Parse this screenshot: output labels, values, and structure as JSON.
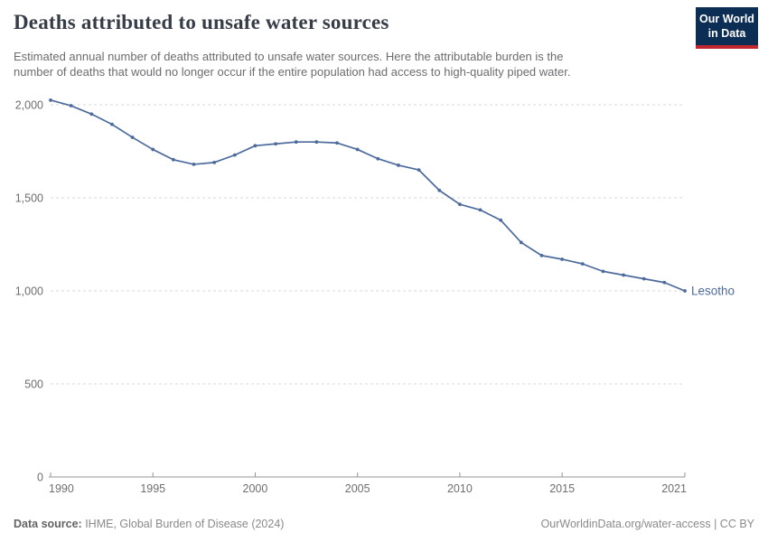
{
  "header": {
    "title": "Deaths attributed to unsafe water sources",
    "subtitle_line1": "Estimated annual number of deaths attributed to unsafe water sources. Here the attributable burden is the",
    "subtitle_line2": "number of deaths that would no longer occur if the entire population had access to high-quality piped water.",
    "logo": {
      "line1": "Our World",
      "line2": "in Data"
    }
  },
  "chart_data": {
    "type": "line",
    "title": "Deaths attributed to unsafe water sources",
    "entity_label": "Lesotho",
    "x": [
      1990,
      1991,
      1992,
      1993,
      1994,
      1995,
      1996,
      1997,
      1998,
      1999,
      2000,
      2001,
      2002,
      2003,
      2004,
      2005,
      2006,
      2007,
      2008,
      2009,
      2010,
      2011,
      2012,
      2013,
      2014,
      2015,
      2016,
      2017,
      2018,
      2019,
      2020,
      2021
    ],
    "series": [
      {
        "name": "Lesotho",
        "values": [
          2025,
          1995,
          1950,
          1895,
          1825,
          1760,
          1705,
          1680,
          1690,
          1730,
          1780,
          1790,
          1800,
          1800,
          1795,
          1760,
          1710,
          1675,
          1650,
          1540,
          1465,
          1435,
          1380,
          1260,
          1190,
          1170,
          1145,
          1105,
          1085,
          1065,
          1045,
          1000
        ]
      }
    ],
    "xlabel": "",
    "ylabel": "",
    "x_ticks": [
      "1990",
      "1995",
      "2000",
      "2005",
      "2010",
      "2015",
      "2021"
    ],
    "y_ticks": [
      {
        "value": 2000,
        "label": "2,000"
      },
      {
        "value": 1500,
        "label": "1,500"
      },
      {
        "value": 1000,
        "label": "1,000"
      },
      {
        "value": 500,
        "label": "500"
      },
      {
        "value": 0,
        "label": "0"
      }
    ],
    "ylim": [
      0,
      2100
    ],
    "grid": true,
    "legend_position": "end-of-line",
    "line_color": "#4C6A9C",
    "grid_color": "#dadada",
    "axis_color": "#949494",
    "tick_label_color": "#6e6e6e"
  },
  "footer": {
    "source_label": "Data source:",
    "source_text": " IHME, Global Burden of Disease (2024)",
    "credit": "OurWorldinData.org/water-access | CC BY"
  }
}
